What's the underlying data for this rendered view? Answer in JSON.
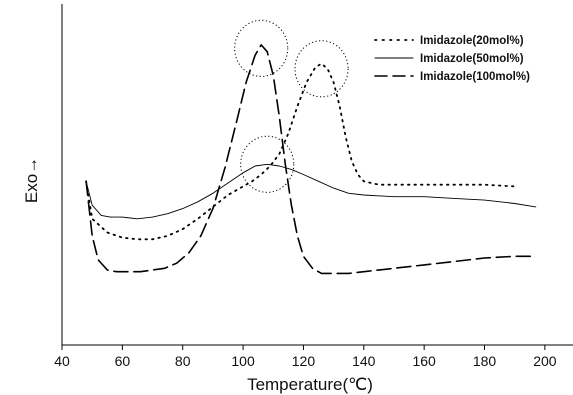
{
  "chart_data": {
    "type": "line",
    "xlabel": "Temperature(℃)",
    "ylabel": "Exo→",
    "xlim": [
      40,
      207
    ],
    "xticks": [
      40,
      60,
      80,
      100,
      120,
      140,
      160,
      180,
      200
    ],
    "ylim": [
      0,
      100
    ],
    "yticks_shown": false,
    "grid": false,
    "legend_position": "top-right",
    "series": [
      {
        "name": "Imidazole(20mol%)",
        "style": "dotted",
        "color": "#000000",
        "points": [
          [
            48,
            48
          ],
          [
            50,
            37
          ],
          [
            55,
            33
          ],
          [
            60,
            31.5
          ],
          [
            65,
            31
          ],
          [
            70,
            31
          ],
          [
            75,
            32
          ],
          [
            80,
            34
          ],
          [
            85,
            37
          ],
          [
            90,
            40.5
          ],
          [
            95,
            44
          ],
          [
            100,
            46.5
          ],
          [
            103,
            48
          ],
          [
            106,
            50
          ],
          [
            109,
            52.5
          ],
          [
            112,
            56
          ],
          [
            115,
            62
          ],
          [
            118,
            70
          ],
          [
            121,
            77
          ],
          [
            124,
            81.5
          ],
          [
            126,
            82.5
          ],
          [
            128,
            81
          ],
          [
            130,
            77
          ],
          [
            132,
            70
          ],
          [
            134,
            61
          ],
          [
            136,
            54
          ],
          [
            138,
            50
          ],
          [
            140,
            48
          ],
          [
            145,
            47
          ],
          [
            150,
            47
          ],
          [
            160,
            47
          ],
          [
            170,
            47
          ],
          [
            180,
            47
          ],
          [
            190,
            46.5
          ]
        ]
      },
      {
        "name": "Imidazole(50mol%)",
        "style": "solid",
        "color": "#000000",
        "points": [
          [
            48,
            48
          ],
          [
            50,
            41
          ],
          [
            53,
            38
          ],
          [
            56,
            37.5
          ],
          [
            60,
            37.5
          ],
          [
            65,
            37
          ],
          [
            70,
            37.5
          ],
          [
            75,
            38.5
          ],
          [
            80,
            40
          ],
          [
            85,
            42
          ],
          [
            90,
            44.5
          ],
          [
            95,
            47.5
          ],
          [
            100,
            50.5
          ],
          [
            104,
            52.5
          ],
          [
            108,
            53
          ],
          [
            112,
            52.5
          ],
          [
            116,
            51.5
          ],
          [
            120,
            50
          ],
          [
            125,
            48
          ],
          [
            130,
            46
          ],
          [
            135,
            44.5
          ],
          [
            140,
            44
          ],
          [
            150,
            43.5
          ],
          [
            160,
            43.5
          ],
          [
            170,
            43
          ],
          [
            180,
            42.5
          ],
          [
            190,
            41.5
          ],
          [
            197,
            40.5
          ]
        ]
      },
      {
        "name": "Imidazole(100mol%)",
        "style": "dashed",
        "color": "#000000",
        "points": [
          [
            48,
            48
          ],
          [
            50,
            32
          ],
          [
            52,
            25
          ],
          [
            55,
            22
          ],
          [
            58,
            21.5
          ],
          [
            62,
            21.5
          ],
          [
            66,
            21.5
          ],
          [
            70,
            22
          ],
          [
            74,
            22.5
          ],
          [
            78,
            24
          ],
          [
            82,
            27
          ],
          [
            86,
            32
          ],
          [
            90,
            40
          ],
          [
            94,
            52
          ],
          [
            98,
            66
          ],
          [
            101,
            77
          ],
          [
            104,
            85
          ],
          [
            106,
            88
          ],
          [
            108,
            86
          ],
          [
            110,
            79
          ],
          [
            112,
            67
          ],
          [
            114,
            53
          ],
          [
            116,
            41
          ],
          [
            118,
            32
          ],
          [
            120,
            26
          ],
          [
            123,
            22.5
          ],
          [
            126,
            21
          ],
          [
            130,
            21
          ],
          [
            135,
            21
          ],
          [
            140,
            21.5
          ],
          [
            150,
            22.5
          ],
          [
            160,
            23.5
          ],
          [
            170,
            24.5
          ],
          [
            180,
            25.5
          ],
          [
            190,
            26
          ],
          [
            197,
            26
          ]
        ]
      }
    ],
    "annotations": [
      {
        "type": "circle",
        "cx": 106,
        "cy": 87,
        "r": 10
      },
      {
        "type": "circle",
        "cx": 126,
        "cy": 81,
        "r": 10
      },
      {
        "type": "circle",
        "cx": 108,
        "cy": 53,
        "r": 10
      }
    ]
  }
}
